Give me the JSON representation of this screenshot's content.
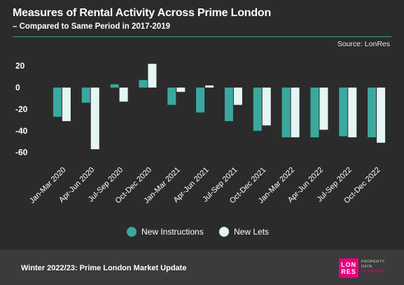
{
  "header": {
    "title": "Measures of Rental Activity Across Prime London",
    "subtitle": "– Compared to Same Period in 2017-2019",
    "source": "Source: LonRes"
  },
  "chart_data": {
    "type": "bar",
    "title": "Measures of Rental Activity Across Prime London",
    "subtitle": "– Compared to Same Period in 2017-2019",
    "categories": [
      "Jan-Mar 2020",
      "Apr-Jun 2020",
      "Jul-Sep 2020",
      "Oct-Dec 2020",
      "Jan-Mar 2021",
      "Apr-Jun 2021",
      "Jul-Sep 2021",
      "Oct-Dec 2021",
      "Jan-Mar 2022",
      "Apr-Jun 2022",
      "Jul-Sep 2022",
      "Oct-Dec 2022"
    ],
    "series": [
      {
        "name": "New Instructions",
        "color": "#3aa89e",
        "values": [
          -27,
          -14,
          3,
          7,
          -16,
          -23,
          -31,
          -40,
          -46,
          -46,
          -45,
          -46
        ]
      },
      {
        "name": "New Lets",
        "color": "#e4f6f4",
        "values": [
          -31,
          -57,
          -13,
          22,
          -4,
          2,
          -16,
          -35,
          -46,
          -39,
          -46,
          -51
        ]
      }
    ],
    "yticks": [
      20,
      0,
      -20,
      -40,
      -60
    ],
    "ylim": [
      -66,
      24
    ],
    "grid": false,
    "legend": "bottom-center",
    "xlabel": "",
    "ylabel": ""
  },
  "footer": {
    "text": "Winter 2022/23: Prime London Market Update",
    "logo_line1": "LON",
    "logo_line2": "RES",
    "tagline_1": "PROPERTY.",
    "tagline_2": "DATA.",
    "tagline_3": "NETWORK."
  },
  "colors": {
    "background": "#2b2b2b",
    "footer": "#3b3b3b",
    "accent": "#3aa89e",
    "brand": "#e6007e"
  }
}
